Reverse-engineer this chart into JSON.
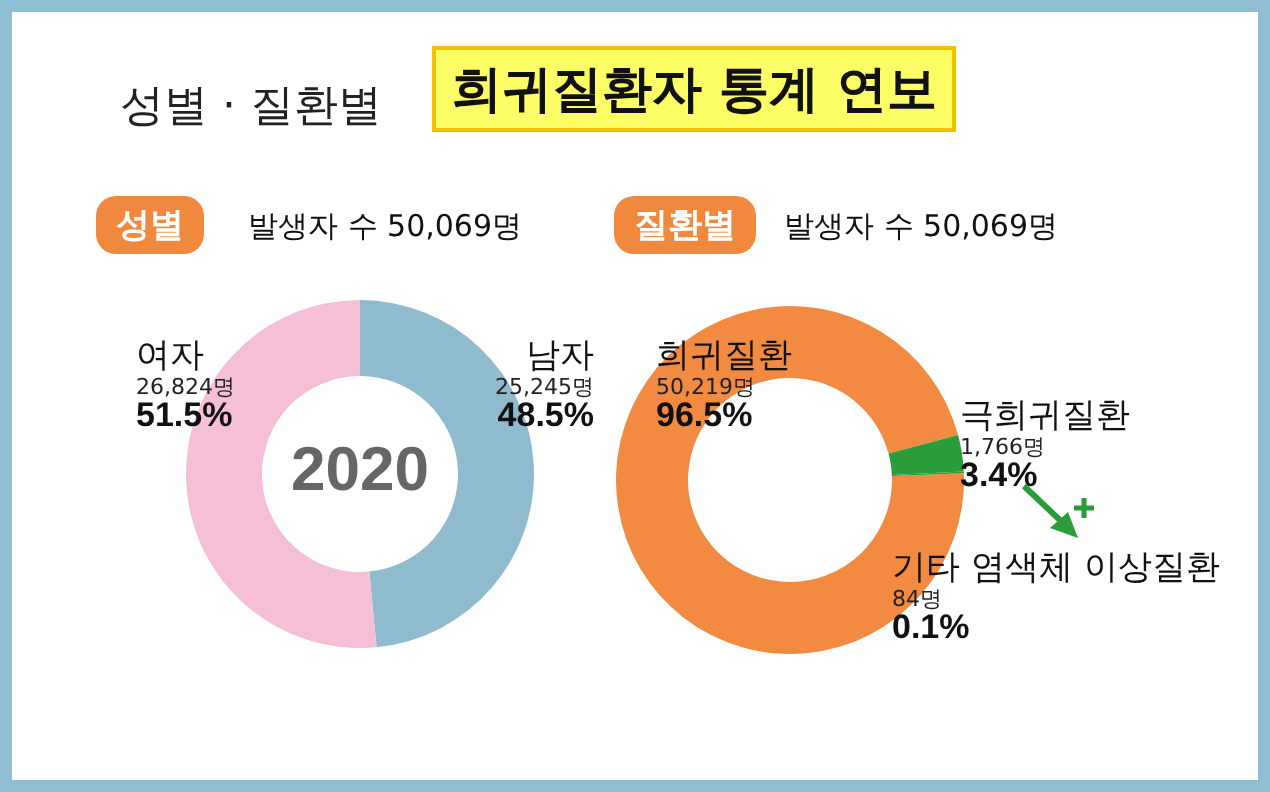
{
  "chart_data": [
    {
      "type": "donut",
      "title": "성별",
      "subtitle": "발생자 수 50,069명",
      "categories": [
        "남자",
        "여자"
      ],
      "values": [
        25245,
        26824
      ],
      "colors": [
        "#8fbbcf",
        "#f5bfd7"
      ],
      "value_labels": [
        "25,245명",
        "26,824명"
      ],
      "annotations": [
        "성별 · 질환별",
        "희귀질환자 통계 연보",
        "2020",
        {
          "text": "48.5%",
          "x": "남자"
        },
        {
          "text": "51.5%",
          "x": "여자"
        }
      ]
    },
    {
      "type": "donut",
      "title": "질환별",
      "subtitle": "발생자 수 50,069명",
      "categories": [
        "희귀질환",
        "극희귀질환",
        "기타 염색체 이상질환"
      ],
      "values": [
        50219,
        1766,
        84
      ],
      "colors": [
        "#f28a42",
        "#2a9d3a",
        "#2a9d3a"
      ],
      "value_labels": [
        "50,219명",
        "1,766명",
        "84명"
      ],
      "annotations": [
        {
          "text": "96.5%",
          "x": "희귀질환"
        },
        {
          "text": "3.4%",
          "x": "극희귀질환"
        },
        {
          "text": "0.1%",
          "x": "기타 염색체 이상질환"
        }
      ]
    }
  ]
}
